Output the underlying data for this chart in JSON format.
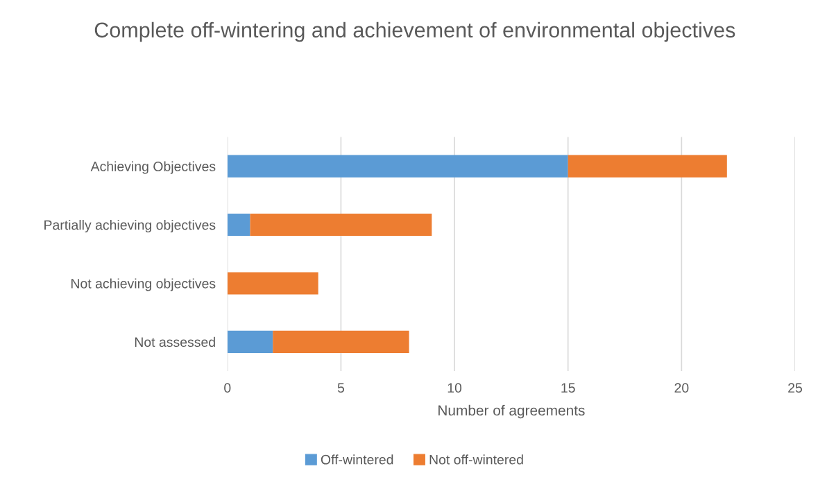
{
  "chart_data": {
    "type": "bar",
    "orientation": "horizontal",
    "stacked": true,
    "title": "Complete off-wintering and achievement of environmental objectives",
    "xlabel": "Number of agreements",
    "categories": [
      "Achieving Objectives",
      "Partially achieving objectives",
      "Not achieving objectives",
      "Not assessed"
    ],
    "series": [
      {
        "name": "Off-wintered",
        "color": "#5b9bd5",
        "values": [
          15,
          1,
          0,
          2
        ]
      },
      {
        "name": "Not off-wintered",
        "color": "#ed7d31",
        "values": [
          7,
          8,
          4,
          6
        ]
      }
    ],
    "xlim": [
      0,
      25
    ],
    "xticks": [
      0,
      5,
      10,
      15,
      20,
      25
    ],
    "grid": "x",
    "legend": "bottom"
  }
}
